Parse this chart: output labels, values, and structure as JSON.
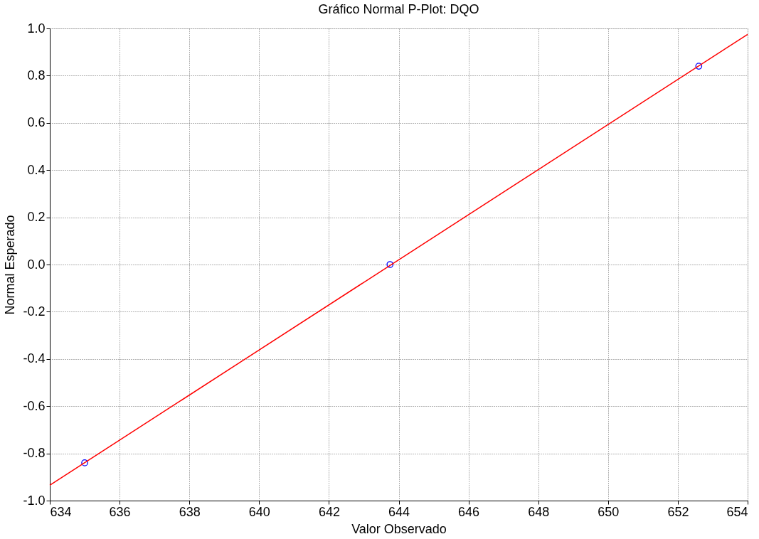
{
  "chart_data": {
    "type": "scatter",
    "title": "Gráfico Normal P-Plot: DQO",
    "xlabel": "Valor Observado",
    "ylabel": "Normal Esperado",
    "series": [
      {
        "color": "#0000ff",
        "marker": "circle",
        "x": [
          635.0,
          643.75,
          652.6
        ],
        "values": [
          -0.84,
          0.0,
          0.84
        ]
      },
      {
        "type": "line",
        "color": "#ff0000",
        "line_style": "solid",
        "x": [
          634,
          654
        ],
        "values": [
          -0.935,
          0.975
        ]
      }
    ],
    "xlim": [
      634,
      654
    ],
    "xticks": [
      634,
      636,
      638,
      640,
      642,
      644,
      646,
      648,
      650,
      652,
      654
    ],
    "ylim": [
      -1.0,
      1.0
    ],
    "yticks": [
      {
        "value": -1.0,
        "label": "-1.0"
      },
      {
        "value": -0.8,
        "label": "-0.8"
      },
      {
        "value": -0.6,
        "label": "-0.6"
      },
      {
        "value": -0.4,
        "label": "-0.4"
      },
      {
        "value": -0.2,
        "label": "-0.2"
      },
      {
        "value": 0.0,
        "label": "0.0"
      },
      {
        "value": 0.2,
        "label": "0.2"
      },
      {
        "value": 0.4,
        "label": "0.4"
      },
      {
        "value": 0.6,
        "label": "0.6"
      },
      {
        "value": 0.8,
        "label": "0.8"
      },
      {
        "value": 1.0,
        "label": "1.0"
      }
    ],
    "grid": true
  }
}
